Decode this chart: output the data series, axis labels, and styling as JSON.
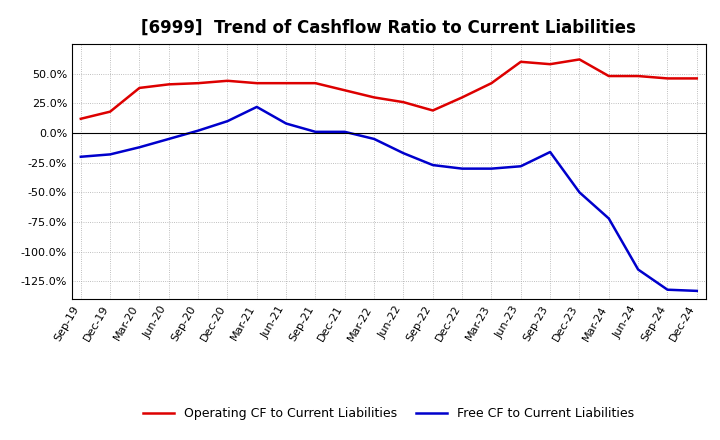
{
  "title": "[6999]  Trend of Cashflow Ratio to Current Liabilities",
  "x_labels": [
    "Sep-19",
    "Dec-19",
    "Mar-20",
    "Jun-20",
    "Sep-20",
    "Dec-20",
    "Mar-21",
    "Jun-21",
    "Sep-21",
    "Dec-21",
    "Mar-22",
    "Jun-22",
    "Sep-22",
    "Dec-22",
    "Mar-23",
    "Jun-23",
    "Sep-23",
    "Dec-23",
    "Mar-24",
    "Jun-24",
    "Sep-24",
    "Dec-24"
  ],
  "operating_cf": [
    12,
    18,
    38,
    41,
    42,
    44,
    42,
    42,
    42,
    36,
    30,
    26,
    19,
    30,
    42,
    60,
    58,
    62,
    48,
    48,
    46,
    46
  ],
  "free_cf": [
    -20,
    -18,
    -12,
    -5,
    2,
    10,
    22,
    8,
    1,
    1,
    -5,
    -17,
    -27,
    -30,
    -30,
    -28,
    -16,
    -50,
    -72,
    -115,
    -132,
    -133
  ],
  "ylim": [
    -140,
    75
  ],
  "yticks": [
    50,
    25,
    0,
    -25,
    -50,
    -75,
    -100,
    -125
  ],
  "operating_color": "#dd0000",
  "free_color": "#0000cc",
  "legend_labels": [
    "Operating CF to Current Liabilities",
    "Free CF to Current Liabilities"
  ],
  "background_color": "#ffffff",
  "grid_color": "#aaaaaa",
  "title_fontsize": 12,
  "tick_fontsize": 8
}
